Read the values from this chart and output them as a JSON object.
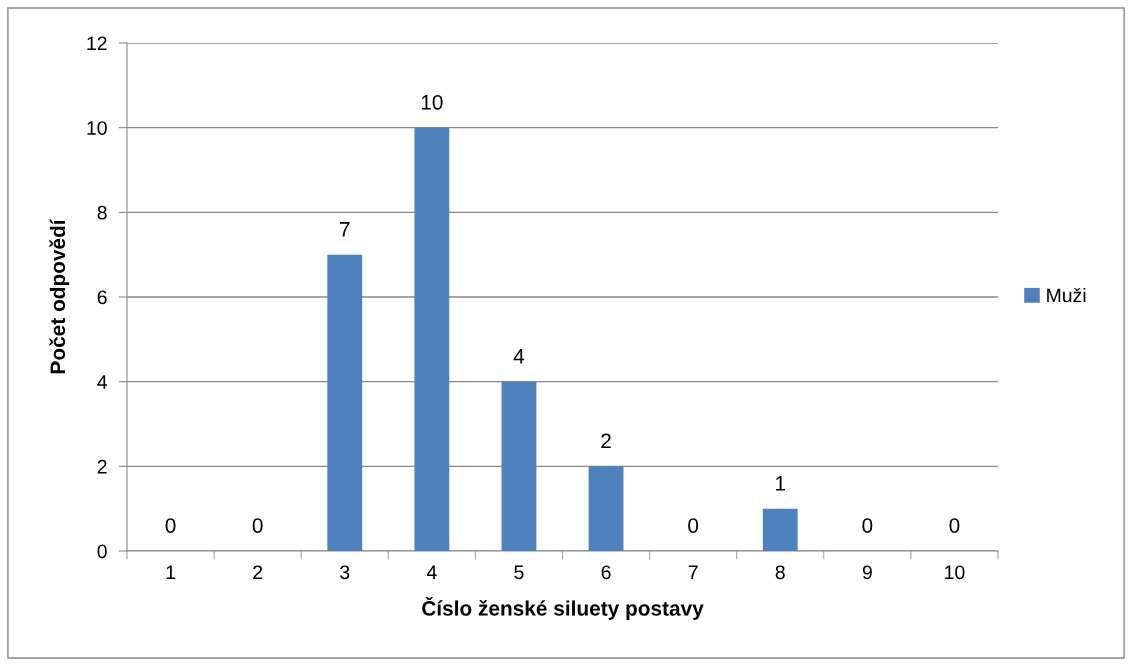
{
  "chart_data": {
    "type": "bar",
    "xlabel": "Číslo ženské siluety postavy",
    "ylabel": "Počet odpovědí",
    "categories": [
      "1",
      "2",
      "3",
      "4",
      "5",
      "6",
      "7",
      "8",
      "9",
      "10"
    ],
    "series": [
      {
        "name": "Muži",
        "color": "#4f81bd",
        "values": [
          0,
          0,
          7,
          10,
          4,
          2,
          0,
          1,
          0,
          0
        ]
      }
    ],
    "ylim": [
      0,
      12
    ],
    "yticks": [
      0,
      2,
      4,
      6,
      8,
      10,
      12
    ],
    "grid": "y",
    "legend": "right",
    "data_labels": true
  }
}
